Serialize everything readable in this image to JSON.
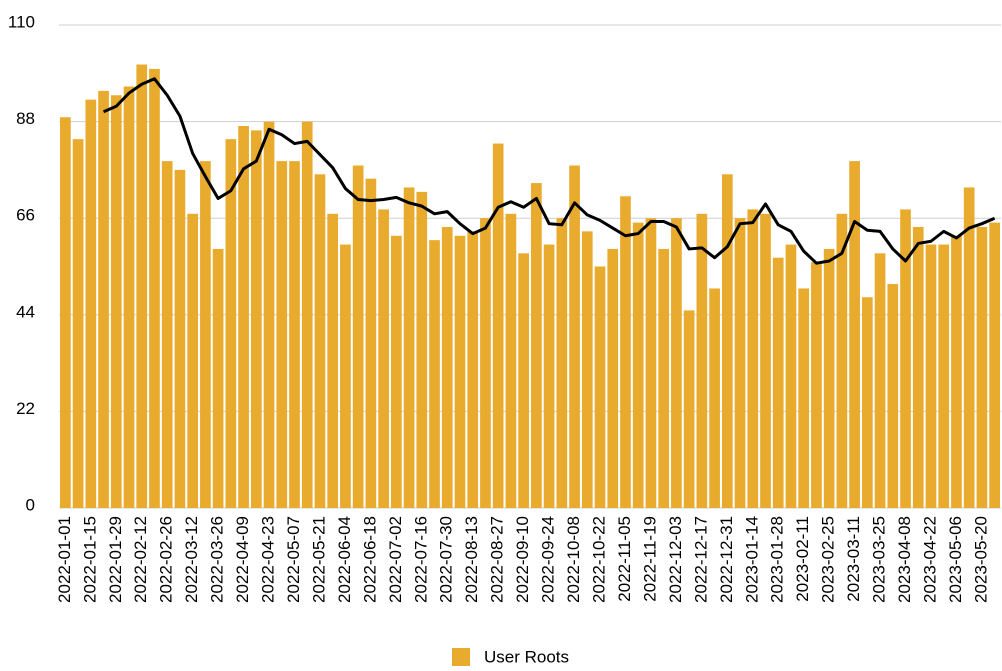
{
  "chart_data": {
    "type": "bar",
    "categories": [
      "2022-01-01",
      null,
      "2022-01-15",
      null,
      "2022-01-29",
      null,
      "2022-02-12",
      null,
      "2022-02-26",
      null,
      "2022-03-12",
      null,
      "2022-03-26",
      null,
      "2022-04-09",
      null,
      "2022-04-23",
      null,
      "2022-05-07",
      null,
      "2022-05-21",
      null,
      "2022-06-04",
      null,
      "2022-06-18",
      null,
      "2022-07-02",
      null,
      "2022-07-16",
      null,
      "2022-07-30",
      null,
      "2022-08-13",
      null,
      "2022-08-27",
      null,
      "2022-09-10",
      null,
      "2022-09-24",
      null,
      "2022-10-08",
      null,
      "2022-10-22",
      null,
      "2022-11-05",
      null,
      "2022-11-19",
      null,
      "2022-12-03",
      null,
      "2022-12-17",
      null,
      "2022-12-31",
      null,
      "2023-01-14",
      null,
      "2023-01-28",
      null,
      "2023-02-11",
      null,
      "2023-02-25",
      null,
      "2023-03-11",
      null,
      "2023-03-25",
      null,
      "2023-04-08",
      null,
      "2023-04-22",
      null,
      "2023-05-06",
      null,
      "2023-05-20",
      null
    ],
    "series": [
      {
        "name": "User Roots",
        "type": "bar",
        "color": "#e9ab2e",
        "values": [
          89,
          84,
          93,
          95,
          94,
          96,
          101,
          100,
          79,
          77,
          67,
          79,
          59,
          84,
          87,
          86,
          88,
          79,
          79,
          88,
          76,
          67,
          60,
          78,
          75,
          68,
          62,
          73,
          72,
          61,
          64,
          62,
          63,
          66,
          83,
          67,
          58,
          74,
          60,
          66,
          78,
          63,
          55,
          59,
          71,
          65,
          66,
          59,
          66,
          45,
          67,
          50,
          76,
          66,
          68,
          67,
          57,
          60,
          50,
          56,
          59,
          67,
          79,
          48,
          58,
          51,
          68,
          64,
          60,
          60,
          62,
          73,
          64,
          65
        ]
      },
      {
        "type": "line",
        "color": "#000000",
        "values": [
          null,
          null,
          null,
          90.25,
          91.5,
          94.5,
          96.5,
          97.75,
          94,
          89.25,
          80.75,
          75.5,
          70.5,
          72.25,
          77.25,
          79,
          86.25,
          85,
          83,
          83.5,
          80.5,
          77.5,
          72.75,
          70.25,
          70,
          70.25,
          70.75,
          69.5,
          68.75,
          67,
          67.5,
          64.75,
          62.5,
          63.75,
          68.5,
          69.75,
          68.5,
          70.5,
          64.75,
          64.5,
          69.5,
          66.75,
          65.5,
          63.75,
          62,
          62.5,
          65.25,
          65.25,
          64,
          59,
          59.25,
          57,
          59.5,
          64.75,
          65,
          69.25,
          64.5,
          63,
          58.5,
          55.75,
          56.25,
          58,
          65.25,
          63.25,
          63,
          59,
          56.25,
          60.25,
          60.75,
          63,
          61.5,
          63.75,
          64.75,
          66
        ]
      }
    ],
    "ylim": [
      0,
      110
    ],
    "yticks": [
      0,
      22,
      44,
      66,
      88,
      110
    ],
    "grid": true,
    "legend": "bottom"
  }
}
